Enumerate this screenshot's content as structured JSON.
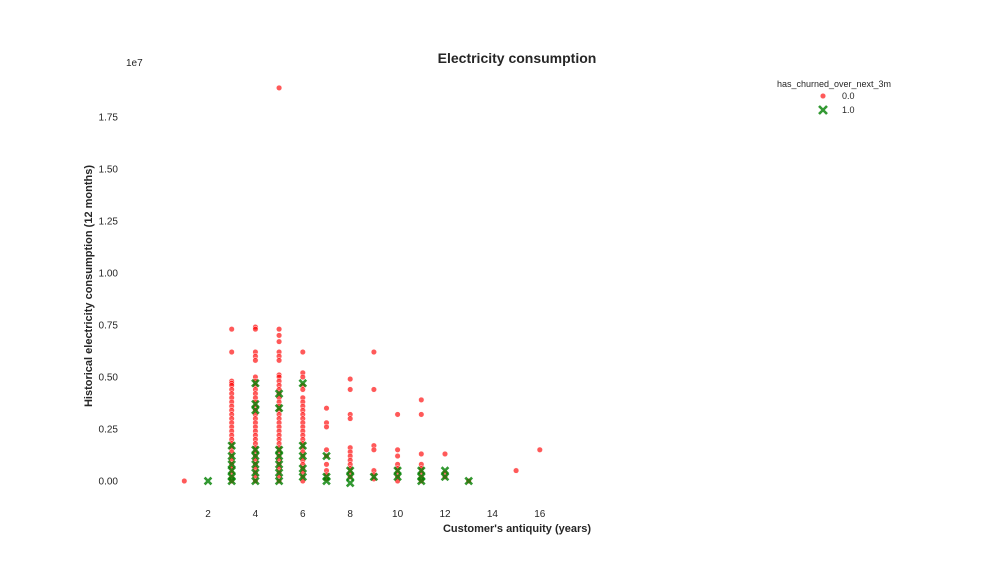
{
  "chart_data": {
    "type": "scatter",
    "title": "Electricity consumption",
    "xlabel": "Customer's antiquity (years)",
    "ylabel": "Historical electricity consumption (12 months)",
    "y_offset_label": "1e7",
    "xlim": [
      0.5,
      16.5
    ],
    "ylim": [
      -0.1,
      1.9
    ],
    "xticks": [
      2,
      4,
      6,
      8,
      10,
      12,
      14,
      16
    ],
    "yticks": [
      "0.00",
      "0.25",
      "0.50",
      "0.75",
      "1.00",
      "1.25",
      "1.50",
      "1.75"
    ],
    "grid": false,
    "legend": {
      "title": "has_churned_over_next_3m",
      "position": "top-right"
    },
    "series": [
      {
        "name": "0.0",
        "marker": "circle",
        "color": "#ff0000",
        "points": [
          [
            1,
            0.0
          ],
          [
            3,
            0.73
          ],
          [
            3,
            0.62
          ],
          [
            3,
            0.48
          ],
          [
            3,
            0.47
          ],
          [
            3,
            0.46
          ],
          [
            3,
            0.44
          ],
          [
            3,
            0.42
          ],
          [
            3,
            0.4
          ],
          [
            3,
            0.38
          ],
          [
            3,
            0.36
          ],
          [
            3,
            0.34
          ],
          [
            3,
            0.32
          ],
          [
            3,
            0.3
          ],
          [
            3,
            0.28
          ],
          [
            3,
            0.26
          ],
          [
            3,
            0.24
          ],
          [
            3,
            0.22
          ],
          [
            3,
            0.2
          ],
          [
            3,
            0.18
          ],
          [
            3,
            0.16
          ],
          [
            3,
            0.14
          ],
          [
            3,
            0.12
          ],
          [
            3,
            0.1
          ],
          [
            3,
            0.08
          ],
          [
            3,
            0.06
          ],
          [
            3,
            0.04
          ],
          [
            3,
            0.02
          ],
          [
            3,
            0.0
          ],
          [
            4,
            0.74
          ],
          [
            4,
            0.73
          ],
          [
            4,
            0.62
          ],
          [
            4,
            0.6
          ],
          [
            4,
            0.58
          ],
          [
            4,
            0.5
          ],
          [
            4,
            0.48
          ],
          [
            4,
            0.46
          ],
          [
            4,
            0.44
          ],
          [
            4,
            0.42
          ],
          [
            4,
            0.4
          ],
          [
            4,
            0.38
          ],
          [
            4,
            0.36
          ],
          [
            4,
            0.34
          ],
          [
            4,
            0.32
          ],
          [
            4,
            0.3
          ],
          [
            4,
            0.28
          ],
          [
            4,
            0.26
          ],
          [
            4,
            0.24
          ],
          [
            4,
            0.22
          ],
          [
            4,
            0.2
          ],
          [
            4,
            0.18
          ],
          [
            4,
            0.16
          ],
          [
            4,
            0.14
          ],
          [
            4,
            0.12
          ],
          [
            4,
            0.1
          ],
          [
            4,
            0.08
          ],
          [
            4,
            0.06
          ],
          [
            4,
            0.04
          ],
          [
            4,
            0.02
          ],
          [
            4,
            0.0
          ],
          [
            5,
            1.89
          ],
          [
            5,
            0.73
          ],
          [
            5,
            0.7
          ],
          [
            5,
            0.67
          ],
          [
            5,
            0.62
          ],
          [
            5,
            0.6
          ],
          [
            5,
            0.58
          ],
          [
            5,
            0.51
          ],
          [
            5,
            0.5
          ],
          [
            5,
            0.48
          ],
          [
            5,
            0.46
          ],
          [
            5,
            0.44
          ],
          [
            5,
            0.42
          ],
          [
            5,
            0.4
          ],
          [
            5,
            0.38
          ],
          [
            5,
            0.36
          ],
          [
            5,
            0.34
          ],
          [
            5,
            0.32
          ],
          [
            5,
            0.3
          ],
          [
            5,
            0.28
          ],
          [
            5,
            0.26
          ],
          [
            5,
            0.24
          ],
          [
            5,
            0.22
          ],
          [
            5,
            0.2
          ],
          [
            5,
            0.18
          ],
          [
            5,
            0.16
          ],
          [
            5,
            0.14
          ],
          [
            5,
            0.12
          ],
          [
            5,
            0.1
          ],
          [
            5,
            0.08
          ],
          [
            5,
            0.06
          ],
          [
            5,
            0.04
          ],
          [
            5,
            0.02
          ],
          [
            5,
            0.0
          ],
          [
            6,
            0.62
          ],
          [
            6,
            0.52
          ],
          [
            6,
            0.5
          ],
          [
            6,
            0.46
          ],
          [
            6,
            0.44
          ],
          [
            6,
            0.4
          ],
          [
            6,
            0.38
          ],
          [
            6,
            0.36
          ],
          [
            6,
            0.34
          ],
          [
            6,
            0.32
          ],
          [
            6,
            0.3
          ],
          [
            6,
            0.28
          ],
          [
            6,
            0.26
          ],
          [
            6,
            0.24
          ],
          [
            6,
            0.22
          ],
          [
            6,
            0.2
          ],
          [
            6,
            0.18
          ],
          [
            6,
            0.16
          ],
          [
            6,
            0.14
          ],
          [
            6,
            0.12
          ],
          [
            6,
            0.1
          ],
          [
            6,
            0.08
          ],
          [
            6,
            0.06
          ],
          [
            6,
            0.04
          ],
          [
            6,
            0.02
          ],
          [
            6,
            0.0
          ],
          [
            7,
            0.35
          ],
          [
            7,
            0.28
          ],
          [
            7,
            0.26
          ],
          [
            7,
            0.15
          ],
          [
            7,
            0.12
          ],
          [
            7,
            0.08
          ],
          [
            7,
            0.05
          ],
          [
            7,
            0.03
          ],
          [
            7,
            0.01
          ],
          [
            8,
            0.49
          ],
          [
            8,
            0.44
          ],
          [
            8,
            0.32
          ],
          [
            8,
            0.3
          ],
          [
            8,
            0.16
          ],
          [
            8,
            0.14
          ],
          [
            8,
            0.12
          ],
          [
            8,
            0.1
          ],
          [
            8,
            0.08
          ],
          [
            8,
            0.06
          ],
          [
            8,
            0.04
          ],
          [
            8,
            0.02
          ],
          [
            9,
            0.62
          ],
          [
            9,
            0.44
          ],
          [
            9,
            0.17
          ],
          [
            9,
            0.15
          ],
          [
            9,
            0.05
          ],
          [
            9,
            0.03
          ],
          [
            9,
            0.01
          ],
          [
            10,
            0.32
          ],
          [
            10,
            0.15
          ],
          [
            10,
            0.12
          ],
          [
            10,
            0.08
          ],
          [
            10,
            0.06
          ],
          [
            10,
            0.04
          ],
          [
            10,
            0.02
          ],
          [
            10,
            0.0
          ],
          [
            11,
            0.39
          ],
          [
            11,
            0.32
          ],
          [
            11,
            0.13
          ],
          [
            11,
            0.08
          ],
          [
            11,
            0.06
          ],
          [
            11,
            0.04
          ],
          [
            11,
            0.02
          ],
          [
            11,
            0.0
          ],
          [
            12,
            0.13
          ],
          [
            12,
            0.04
          ],
          [
            12,
            0.02
          ],
          [
            13,
            0.0
          ],
          [
            15,
            0.05
          ],
          [
            16,
            0.15
          ]
        ]
      },
      {
        "name": "1.0",
        "marker": "x",
        "color": "#008000",
        "points": [
          [
            2,
            0.0
          ],
          [
            3,
            0.17
          ],
          [
            3,
            0.12
          ],
          [
            3,
            0.08
          ],
          [
            3,
            0.05
          ],
          [
            3,
            0.02
          ],
          [
            3,
            0.0
          ],
          [
            4,
            0.47
          ],
          [
            4,
            0.37
          ],
          [
            4,
            0.34
          ],
          [
            4,
            0.15
          ],
          [
            4,
            0.12
          ],
          [
            4,
            0.08
          ],
          [
            4,
            0.04
          ],
          [
            4,
            0.0
          ],
          [
            5,
            0.42
          ],
          [
            5,
            0.35
          ],
          [
            5,
            0.15
          ],
          [
            5,
            0.12
          ],
          [
            5,
            0.08
          ],
          [
            5,
            0.04
          ],
          [
            5,
            0.0
          ],
          [
            6,
            0.47
          ],
          [
            6,
            0.17
          ],
          [
            6,
            0.12
          ],
          [
            6,
            0.06
          ],
          [
            6,
            0.02
          ],
          [
            7,
            0.12
          ],
          [
            7,
            0.02
          ],
          [
            7,
            0.0
          ],
          [
            8,
            0.05
          ],
          [
            8,
            0.02
          ],
          [
            8,
            -0.01
          ],
          [
            9,
            0.02
          ],
          [
            10,
            0.05
          ],
          [
            10,
            0.02
          ],
          [
            11,
            0.05
          ],
          [
            11,
            0.02
          ],
          [
            11,
            0.0
          ],
          [
            12,
            0.05
          ],
          [
            12,
            0.02
          ],
          [
            13,
            0.0
          ]
        ]
      }
    ]
  }
}
